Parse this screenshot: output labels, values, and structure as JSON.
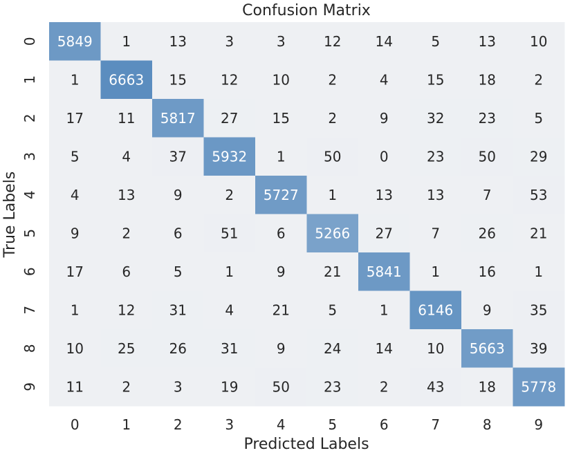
{
  "chart_data": {
    "type": "heatmap",
    "title": "Confusion Matrix",
    "xlabel": "Predicted Labels",
    "ylabel": "True Labels",
    "x_categories": [
      "0",
      "1",
      "2",
      "3",
      "4",
      "5",
      "6",
      "7",
      "8",
      "9"
    ],
    "y_categories": [
      "0",
      "1",
      "2",
      "3",
      "4",
      "5",
      "6",
      "7",
      "8",
      "9"
    ],
    "values": [
      [
        5849,
        1,
        13,
        3,
        3,
        12,
        14,
        5,
        13,
        10
      ],
      [
        1,
        6663,
        15,
        12,
        10,
        2,
        4,
        15,
        18,
        2
      ],
      [
        17,
        11,
        5817,
        27,
        15,
        2,
        9,
        32,
        23,
        5
      ],
      [
        5,
        4,
        37,
        5932,
        1,
        50,
        0,
        23,
        50,
        29
      ],
      [
        4,
        13,
        9,
        2,
        5727,
        1,
        13,
        13,
        7,
        53
      ],
      [
        9,
        2,
        6,
        51,
        6,
        5266,
        27,
        7,
        26,
        21
      ],
      [
        17,
        6,
        5,
        1,
        9,
        21,
        5841,
        1,
        16,
        1
      ],
      [
        1,
        12,
        31,
        4,
        21,
        5,
        1,
        6146,
        9,
        35
      ],
      [
        10,
        25,
        26,
        31,
        9,
        24,
        14,
        10,
        5663,
        39
      ],
      [
        11,
        2,
        3,
        19,
        50,
        23,
        2,
        43,
        18,
        5778
      ]
    ],
    "colormap": {
      "low": "#eef0f3",
      "high": "#5b8dbf"
    },
    "grid": false,
    "legend": "none"
  }
}
